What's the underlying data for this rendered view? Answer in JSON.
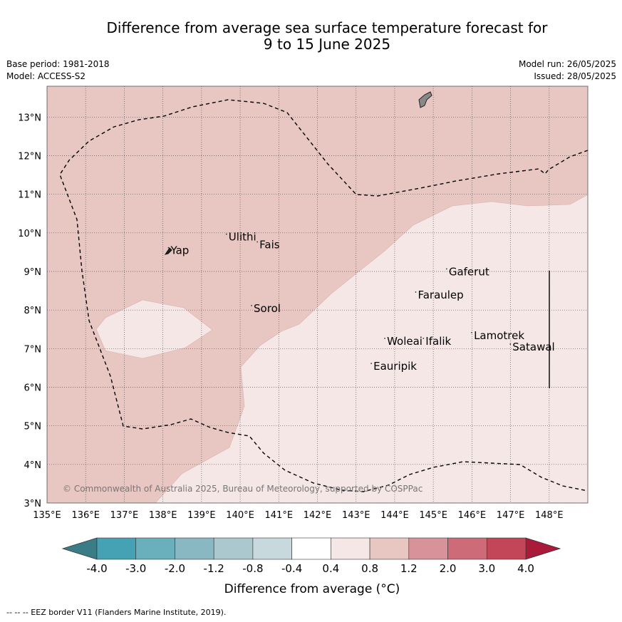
{
  "title_line1": "Difference from average sea surface temperature forecast for",
  "title_line2": "9 to 15 June 2025",
  "meta_left": [
    "Base period: 1981-2018",
    "Model: ACCESS-S2"
  ],
  "meta_right": [
    "Model run: 26/05/2025",
    "Issued: 28/05/2025"
  ],
  "map": {
    "lon_ticks": [
      "135°E",
      "136°E",
      "137°E",
      "138°E",
      "139°E",
      "140°E",
      "141°E",
      "142°E",
      "143°E",
      "144°E",
      "145°E",
      "146°E",
      "147°E",
      "148°E"
    ],
    "lat_ticks": [
      "3°N",
      "4°N",
      "5°N",
      "6°N",
      "7°N",
      "8°N",
      "9°N",
      "10°N",
      "11°N",
      "12°N",
      "13°N"
    ],
    "lon_range": [
      135,
      149
    ],
    "lat_range": [
      3,
      13.8
    ],
    "places": [
      {
        "name": "Yap",
        "lon": 138.2,
        "lat": 9.45
      },
      {
        "name": "Ulithi",
        "lon": 139.7,
        "lat": 9.8
      },
      {
        "name": "Fais",
        "lon": 140.5,
        "lat": 9.6
      },
      {
        "name": "Sorol",
        "lon": 140.35,
        "lat": 7.95
      },
      {
        "name": "Gaferut",
        "lon": 145.4,
        "lat": 8.9
      },
      {
        "name": "Faraulep",
        "lon": 144.6,
        "lat": 8.3
      },
      {
        "name": "Woleai",
        "lon": 143.8,
        "lat": 7.1
      },
      {
        "name": "Ifalik",
        "lon": 144.8,
        "lat": 7.1
      },
      {
        "name": "Lamotrek",
        "lon": 146.05,
        "lat": 7.25
      },
      {
        "name": "Satawal",
        "lon": 147.05,
        "lat": 6.95
      },
      {
        "name": "Eauripik",
        "lon": 143.45,
        "lat": 6.45
      }
    ],
    "copyright": "© Commonwealth of Australia 2025, Bureau of Meteorology, supported by COSPPac"
  },
  "colorbar": {
    "labels": [
      "-4.0",
      "-3.0",
      "-2.0",
      "-1.2",
      "-0.8",
      "-0.4",
      "0.4",
      "0.8",
      "1.2",
      "2.0",
      "3.0",
      "4.0"
    ],
    "colors": [
      "#45a2b4",
      "#6aafbc",
      "#89b7c2",
      "#aac8cd",
      "#c8d9dd",
      "#ffffff",
      "#f5e7e6",
      "#e8c6c2",
      "#d7929a",
      "#cd6c78",
      "#c24658"
    ],
    "under_color": "#3b7d87",
    "over_color": "#aa1a3a",
    "label": "Difference from average (°C)"
  },
  "footer": "--  --  -- EEZ border V11 (Flanders Marine Institute, 2019)."
}
